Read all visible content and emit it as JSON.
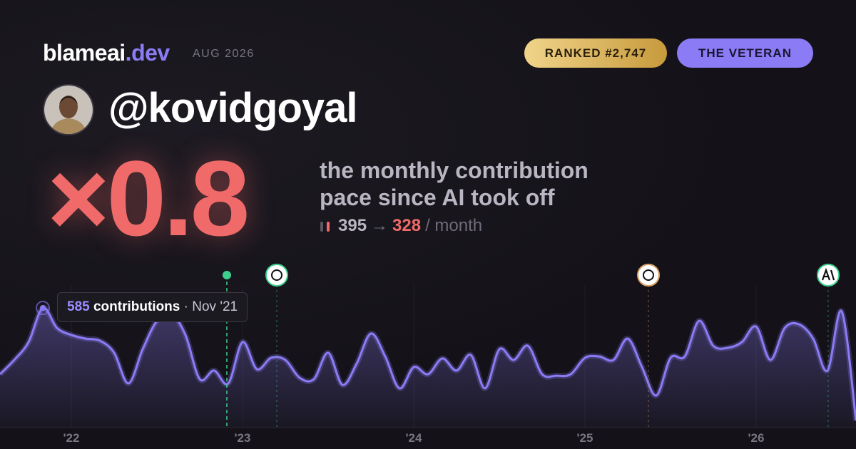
{
  "header": {
    "brand": "blameai",
    "brand_suffix": ".dev",
    "date": "AUG 2026",
    "rank_badge": "RANKED #2,747",
    "title_badge": "THE VETERAN",
    "handle": "@kovidgoyal"
  },
  "headline": {
    "multiplier": "×0.8",
    "description_line1": "the monthly contribution",
    "description_line2": "pace since AI took off",
    "before": "395",
    "arrow": "→",
    "after": "328",
    "unit": "/ month"
  },
  "tooltip": {
    "value": "585",
    "label": "contributions",
    "date": "· Nov '21"
  },
  "chart_data": {
    "type": "area",
    "color": "#8b7cf6",
    "categories": [
      null,
      null,
      null,
      null,
      null,
      "'22",
      null,
      null,
      null,
      null,
      null,
      null,
      null,
      null,
      null,
      null,
      null,
      "'23",
      null,
      null,
      null,
      null,
      null,
      null,
      null,
      null,
      null,
      null,
      null,
      "'24",
      null,
      null,
      null,
      null,
      null,
      null,
      null,
      null,
      null,
      null,
      null,
      "'25",
      null,
      null,
      null,
      null,
      null,
      null,
      null,
      null,
      null,
      null,
      null,
      "'26",
      null,
      null,
      null,
      null,
      null,
      null,
      null
    ],
    "values": [
      261,
      331,
      418,
      585,
      487,
      453,
      435,
      425,
      366,
      216,
      383,
      522,
      557,
      453,
      237,
      279,
      216,
      418,
      286,
      341,
      331,
      244,
      237,
      366,
      209,
      313,
      460,
      348,
      192,
      296,
      261,
      338,
      279,
      355,
      192,
      383,
      331,
      400,
      261,
      254,
      261,
      341,
      348,
      331,
      435,
      296,
      157,
      341,
      348,
      522,
      400,
      390,
      418,
      494,
      331,
      487,
      505,
      435,
      279,
      568,
      35
    ],
    "ylim": [
      0,
      620
    ]
  }
}
